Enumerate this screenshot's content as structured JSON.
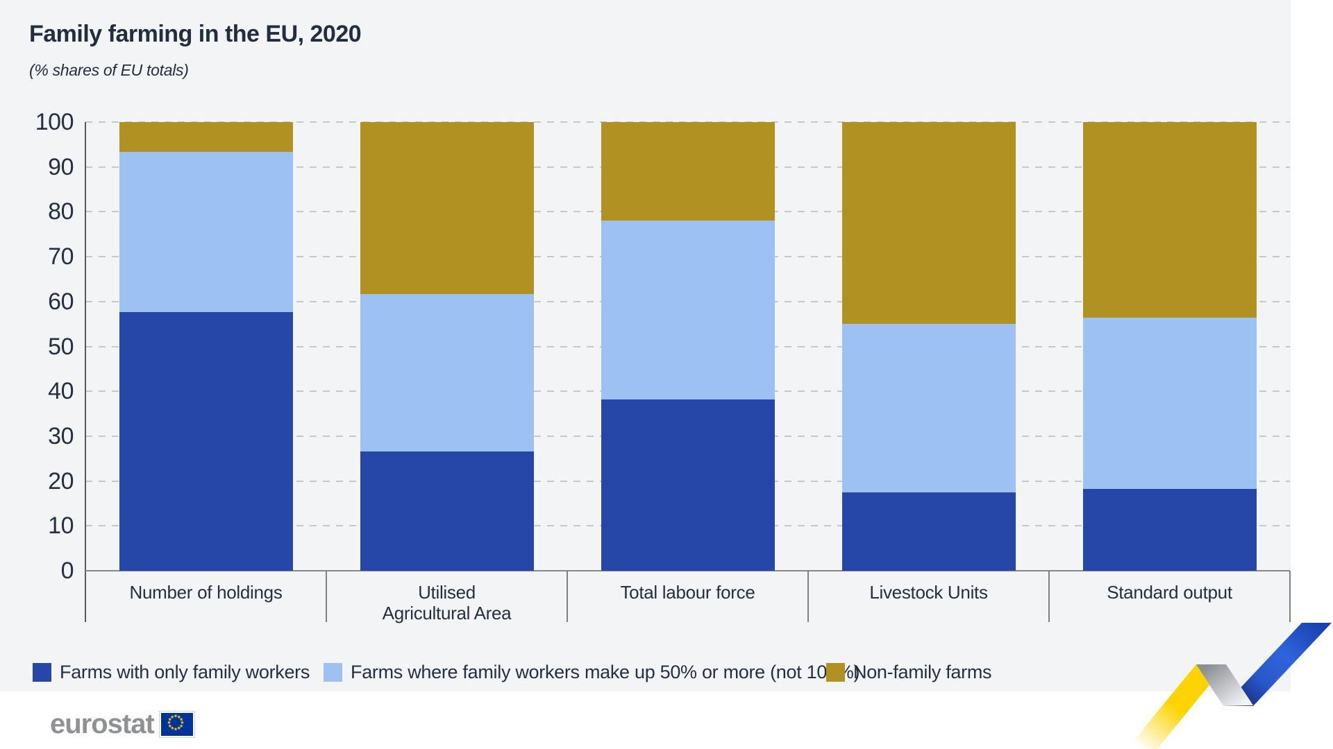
{
  "page": {
    "title": "Family farming in the EU, 2020",
    "subtitle": "(% shares of EU totals)"
  },
  "chart_data": {
    "type": "bar",
    "stacked": true,
    "title": "Family farming in the EU, 2020",
    "subtitle": "(% shares of EU totals)",
    "categories": [
      "Number of holdings",
      "Utilised\nAgricultural Area",
      "Total labour force",
      "Livestock Units",
      "Standard output"
    ],
    "series": [
      {
        "name": "Farms with only family workers",
        "color": "#2747a8",
        "values": [
          57.6,
          26.6,
          38.1,
          17.4,
          18.2
        ]
      },
      {
        "name": "Farms where family workers make up 50% or more (not 100%)",
        "color": "#9ec1f3",
        "values": [
          35.8,
          35.0,
          39.9,
          37.6,
          38.2
        ]
      },
      {
        "name": "Non-family farms",
        "color": "#b19122",
        "values": [
          6.6,
          38.4,
          22.0,
          45.0,
          43.6
        ]
      }
    ],
    "ylim": [
      0,
      100
    ],
    "yticks": [
      0,
      10,
      20,
      30,
      40,
      50,
      60,
      70,
      80,
      90,
      100
    ],
    "grid": "horizontal-dashed",
    "legend_position": "bottom-left"
  },
  "branding": {
    "logo_text": "eurostat",
    "flag_icon": "eu-flag-icon",
    "ribbon_icon": "eurostat-ribbon-icon"
  },
  "colors": {
    "card_background": "#f3f4f6",
    "text": "#242f42",
    "grid": "#c6c7c9",
    "axis": "#55585e",
    "baseline": "#85878a",
    "series_dark_blue": "#2747a8",
    "series_light_blue": "#9ec1f3",
    "series_gold": "#b19122",
    "logo_gray": "#8f9195",
    "flag_blue": "#003399",
    "star_yellow": "#ffcc00",
    "ribbon_yellow": "#fdd301",
    "ribbon_blue": "#2f64de"
  }
}
